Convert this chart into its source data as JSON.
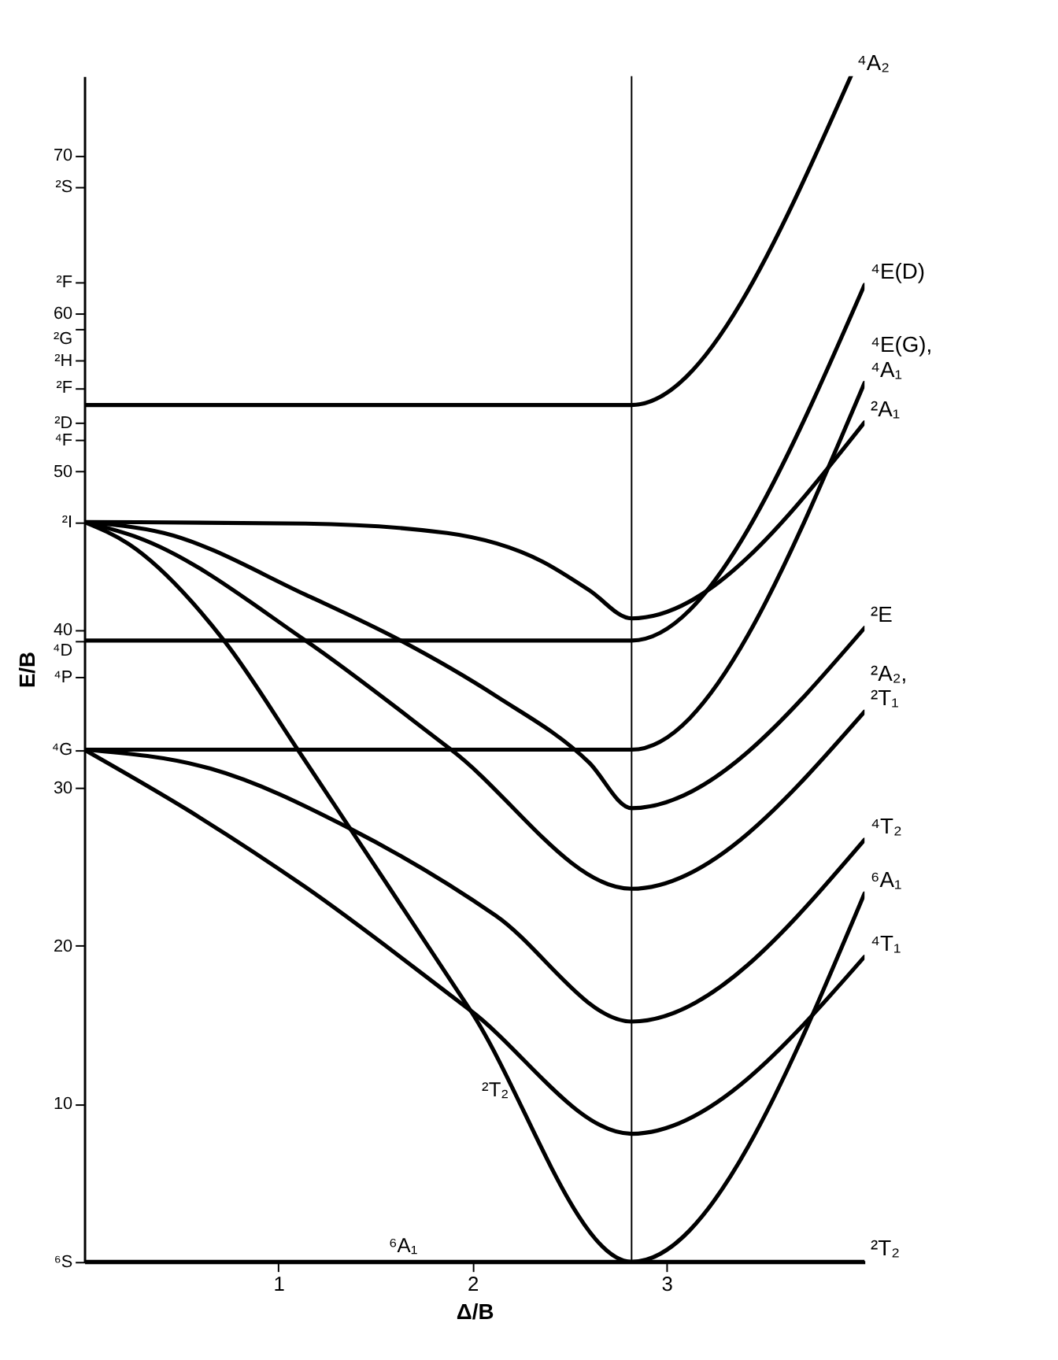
{
  "chart_data": {
    "type": "line",
    "xlabel": "Δ/B",
    "ylabel": "E/B",
    "xlim": [
      0,
      4.02
    ],
    "ylim": [
      0,
      75
    ],
    "xticks": [
      1,
      2,
      3
    ],
    "yticks": [
      {
        "value": 0,
        "label": "⁶S"
      },
      10,
      20,
      30,
      {
        "value": 32.4,
        "label": "⁴G"
      },
      {
        "value": 37,
        "label": "⁴P"
      },
      {
        "value": 39.3,
        "label": "⁴D"
      },
      40,
      {
        "value": 46.8,
        "label": "²I"
      },
      50,
      {
        "value": 52,
        "label": "⁴F"
      },
      {
        "value": 53.1,
        "label": "²D"
      },
      {
        "value": 55.3,
        "label": "²F"
      },
      {
        "value": 57,
        "label": "²H"
      },
      {
        "value": 59,
        "label": "²G"
      },
      60,
      {
        "value": 62,
        "label": "²F"
      },
      {
        "value": 68,
        "label": "²S"
      },
      70
    ],
    "grid": false,
    "legend": false,
    "marker": "none",
    "line_style": "solid",
    "ref_lines": [
      {
        "axis": "x",
        "value": 2.82,
        "color": "#000000"
      }
    ],
    "series": [
      {
        "name": "⁶A₁",
        "color": "#000000",
        "x": [
          0,
          2.82,
          4.02
        ],
        "values": [
          0,
          0,
          23.3
        ]
      },
      {
        "name": "²T₂",
        "color": "#000000",
        "x": [
          0,
          0.23,
          0.72,
          1.1,
          1.37,
          1.99,
          2.82,
          4.02
        ],
        "values": [
          46.8,
          45.4,
          39.3,
          32.4,
          27.4,
          15.9,
          0,
          0
        ]
      },
      {
        "name": "⁴T₁",
        "color": "#000000",
        "x": [
          0,
          0.53,
          1.14,
          1.99,
          2.82,
          4.02
        ],
        "values": [
          32.4,
          28.6,
          23.7,
          15.9,
          8.1,
          19.3
        ]
      },
      {
        "name": "⁴T₂",
        "color": "#000000",
        "x": [
          0,
          0.65,
          1.37,
          2.12,
          2.82,
          4.02
        ],
        "values": [
          32.4,
          31.2,
          27.4,
          21.9,
          15.2,
          26.7
        ]
      },
      {
        "name": "²A₂, ²T₁",
        "color": "#000000",
        "x": [
          0,
          0.28,
          1.14,
          1.89,
          2.82,
          4.02
        ],
        "values": [
          46.8,
          45.8,
          39.3,
          32.4,
          23.6,
          34.8
        ]
      },
      {
        "name": "²E",
        "color": "#000000",
        "x": [
          0,
          0.41,
          1.14,
          1.63,
          2.12,
          2.6,
          2.82,
          4.02
        ],
        "values": [
          46.8,
          46.1,
          42.2,
          39.3,
          35.8,
          31.6,
          28.7,
          40.1
        ]
      },
      {
        "name": "²A₁",
        "color": "#000000",
        "x": [
          0,
          1.14,
          1.87,
          2.36,
          2.6,
          2.82,
          4.02
        ],
        "values": [
          46.8,
          46.7,
          46.1,
          44.3,
          42.5,
          40.7,
          53.1
        ]
      },
      {
        "name": "⁴E(G), ⁴A₁",
        "color": "#000000",
        "x": [
          0,
          2.82,
          4.02
        ],
        "values": [
          32.4,
          32.4,
          55.6
        ]
      },
      {
        "name": "⁴E(D)",
        "color": "#000000",
        "x": [
          0,
          2.82,
          4.02
        ],
        "values": [
          39.3,
          39.3,
          61.8
        ]
      },
      {
        "name": "⁴A₂",
        "color": "#000000",
        "x": [
          0,
          2.82,
          3.95
        ],
        "values": [
          54.2,
          54.2,
          75
        ]
      }
    ],
    "annotations": [
      {
        "text": "⁶A₁",
        "x": 1.83,
        "y": 0
      },
      {
        "text": "²T₂",
        "x": 2.3,
        "y": 9.9
      }
    ]
  }
}
